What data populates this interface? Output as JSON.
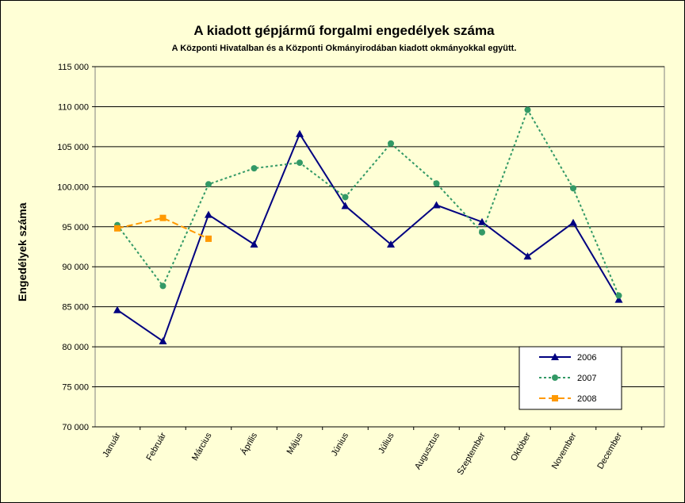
{
  "chart_data": {
    "type": "line",
    "title": "A  kiadott gépjármű forgalmi engedélyek száma",
    "subtitle": "A  Központi Hivatalban és a Központi Okmányirodában kiadott okmányokkal együtt.",
    "y_label": "Engedélyek száma",
    "categories": [
      "Január",
      "Február",
      "Március",
      "Április",
      "Május",
      "Június",
      "Július",
      "Augusztus",
      "Szeptember",
      "Október",
      "November",
      "December"
    ],
    "series": [
      {
        "name": "2006",
        "color": "#000080",
        "marker": "triangle",
        "line_style": "solid",
        "values": [
          84600,
          80700,
          96500,
          92800,
          106600,
          97600,
          92800,
          97700,
          95600,
          91300,
          95500,
          85900
        ]
      },
      {
        "name": "2007",
        "color": "#339966",
        "marker": "circle",
        "line_style": "dotted",
        "values": [
          95200,
          87600,
          100300,
          102300,
          103000,
          98700,
          105400,
          100400,
          94300,
          109600,
          99800,
          86400
        ]
      },
      {
        "name": "2008",
        "color": "#FF9900",
        "marker": "square",
        "line_style": "dashed",
        "values": [
          94800,
          96100,
          93500,
          null,
          null,
          null,
          null,
          null,
          null,
          null,
          null,
          null
        ]
      }
    ],
    "ylim": [
      70000,
      115000
    ],
    "yticks": [
      {
        "value": 70000,
        "label": "70 000"
      },
      {
        "value": 75000,
        "label": "75 000"
      },
      {
        "value": 80000,
        "label": "80 000"
      },
      {
        "value": 85000,
        "label": "85 000"
      },
      {
        "value": 90000,
        "label": "90 000"
      },
      {
        "value": 95000,
        "label": "95 000"
      },
      {
        "value": 100000,
        "label": "100.000"
      },
      {
        "value": 105000,
        "label": "105 000"
      },
      {
        "value": 110000,
        "label": "110 000"
      },
      {
        "value": 115000,
        "label": "115 000"
      }
    ],
    "grid": true,
    "legend": "bottom-right"
  }
}
